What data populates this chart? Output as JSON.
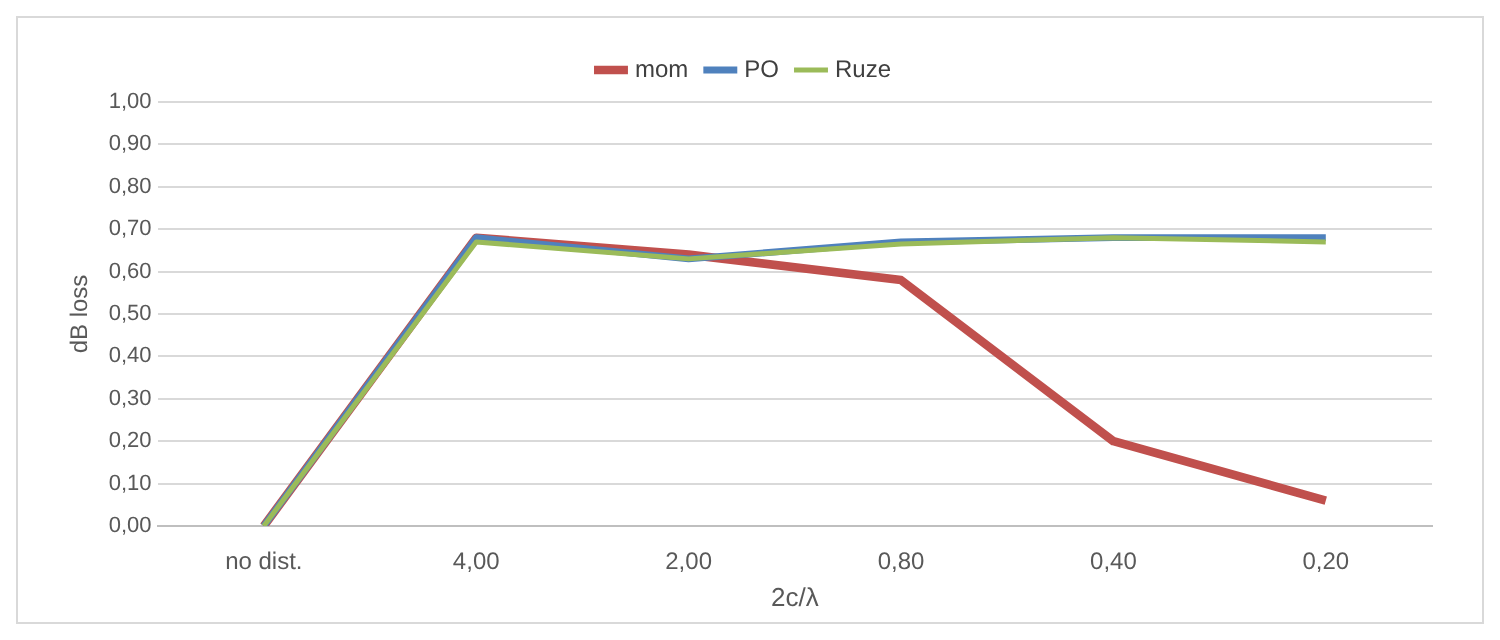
{
  "chart_data": {
    "type": "line",
    "xlabel": "2c/λ",
    "ylabel": "dB loss",
    "categories": [
      "no dist.",
      "4,00",
      "2,00",
      "0,80",
      "0,40",
      "0,20"
    ],
    "series": [
      {
        "name": "mom",
        "color": "#c0504d",
        "values": [
          0,
          0.68,
          0.64,
          0.58,
          0.2,
          0.06
        ]
      },
      {
        "name": "PO",
        "color": "#4f81bd",
        "values": [
          0,
          0.68,
          0.63,
          0.67,
          0.68,
          0.68
        ]
      },
      {
        "name": "Ruze",
        "color": "#9bbb59",
        "values": [
          0,
          0.67,
          0.63,
          0.665,
          0.68,
          0.67
        ]
      }
    ],
    "ylim": [
      0,
      1
    ],
    "yticks": [
      {
        "value": 0,
        "label": "0,00"
      },
      {
        "value": 0.1,
        "label": "0,10"
      },
      {
        "value": 0.2,
        "label": "0,20"
      },
      {
        "value": 0.3,
        "label": "0,30"
      },
      {
        "value": 0.4,
        "label": "0,40"
      },
      {
        "value": 0.5,
        "label": "0,50"
      },
      {
        "value": 0.6,
        "label": "0,60"
      },
      {
        "value": 0.7,
        "label": "0,70"
      },
      {
        "value": 0.8,
        "label": "0,80"
      },
      {
        "value": 0.9,
        "label": "0,90"
      },
      {
        "value": 1,
        "label": "1,00"
      }
    ],
    "grid": "y",
    "legend": "top",
    "marker": "none",
    "line_style": "solid"
  }
}
